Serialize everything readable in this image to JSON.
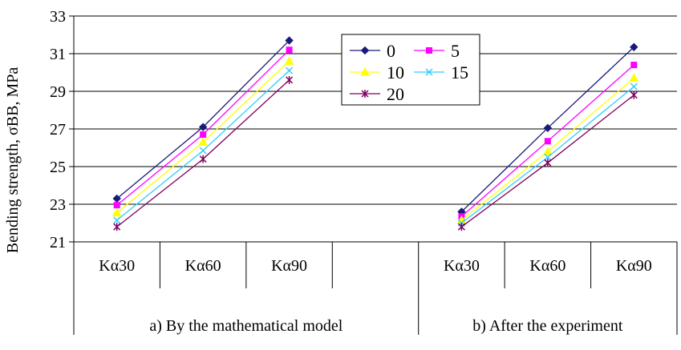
{
  "chart_data": {
    "type": "line",
    "ylabel": "Bending strength, σBB, MPa",
    "ylim": [
      21,
      33
    ],
    "yticks": [
      "21",
      "23",
      "25",
      "27",
      "29",
      "31",
      "33"
    ],
    "grid": true,
    "legend_position": "top-center",
    "categories": [
      "Kα30",
      "Kα60",
      "Kα90",
      "",
      "Kα30",
      "Kα60",
      "Kα90"
    ],
    "groups": [
      {
        "label": "a) By the mathematical model"
      },
      {
        "label": "b) After the experiment"
      }
    ],
    "series": [
      {
        "name": "0",
        "color": "#1a1a7a",
        "marker": "diamond",
        "values": [
          23.3,
          27.1,
          31.7,
          null,
          22.6,
          27.05,
          31.35
        ]
      },
      {
        "name": "5",
        "color": "#ff00ff",
        "marker": "square",
        "values": [
          22.95,
          26.7,
          31.2,
          null,
          22.35,
          26.35,
          30.4
        ]
      },
      {
        "name": "10",
        "color": "#ffff00",
        "marker": "triangle",
        "values": [
          22.55,
          26.3,
          30.6,
          null,
          22.15,
          25.8,
          29.7
        ]
      },
      {
        "name": "15",
        "color": "#33ccff",
        "marker": "x",
        "values": [
          22.15,
          25.85,
          30.1,
          null,
          22.0,
          25.5,
          29.25
        ]
      },
      {
        "name": "20",
        "color": "#800060",
        "marker": "star",
        "values": [
          21.8,
          25.4,
          29.6,
          null,
          21.8,
          25.2,
          28.8
        ]
      }
    ]
  }
}
